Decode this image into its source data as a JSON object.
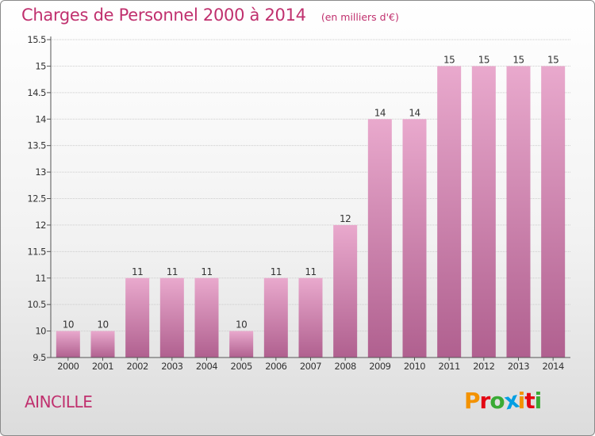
{
  "title": "Charges de Personnel 2000 à 2014",
  "units": "(en milliers d'€)",
  "place": "AINCILLE",
  "brand": "Proxiti",
  "colors": {
    "title": "#c0306e",
    "bar_top": "#e9a9cd",
    "bar_bottom": "#b0608f",
    "axis": "#555555",
    "grid": "#cccccc"
  },
  "chart_data": {
    "type": "bar",
    "categories": [
      "2000",
      "2001",
      "2002",
      "2003",
      "2004",
      "2005",
      "2006",
      "2007",
      "2008",
      "2009",
      "2010",
      "2011",
      "2012",
      "2013",
      "2014"
    ],
    "values": [
      10,
      10,
      11,
      11,
      11,
      10,
      11,
      11,
      12,
      14,
      14,
      15,
      15,
      15,
      15
    ],
    "data_labels": [
      "10",
      "10",
      "11",
      "11",
      "11",
      "10",
      "11",
      "11",
      "12",
      "14",
      "14",
      "15",
      "15",
      "15",
      "15"
    ],
    "title": "Charges de Personnel 2000 à 2014",
    "xlabel": "",
    "ylabel": "",
    "ylim": [
      9.5,
      15.5
    ],
    "yticks": [
      9.5,
      10,
      10.5,
      11,
      11.5,
      12,
      12.5,
      13,
      13.5,
      14,
      14.5,
      15,
      15.5
    ],
    "ytick_labels": [
      "9.5",
      "10",
      "10.5",
      "11",
      "11.5",
      "12",
      "12.5",
      "13",
      "13.5",
      "14",
      "14.5",
      "15",
      "15.5"
    ],
    "grid": true,
    "legend": "none"
  }
}
